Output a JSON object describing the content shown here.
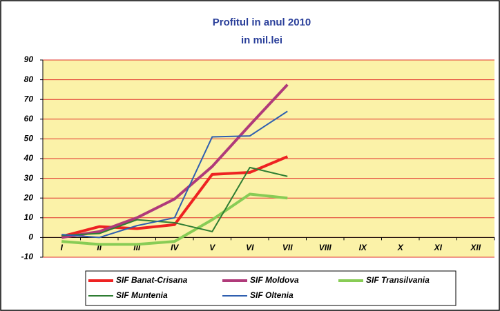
{
  "chart_data": {
    "type": "line",
    "title": "Profitul in anul 2010",
    "subtitle": "in mil.lei",
    "categories": [
      "I",
      "II",
      "III",
      "IV",
      "V",
      "VI",
      "VII",
      "VIII",
      "IX",
      "X",
      "XI",
      "XII"
    ],
    "series": [
      {
        "name": "SIF Banat-Crisana",
        "color": "#ee2222",
        "line_width": 4,
        "values": [
          0.5,
          5.5,
          4.5,
          6.5,
          32,
          33,
          41,
          null,
          null,
          null,
          null,
          null
        ]
      },
      {
        "name": "SIF Moldova",
        "color": "#b03a7a",
        "line_width": 4,
        "values": [
          0,
          3,
          10,
          19.5,
          36,
          57,
          77.5,
          null,
          null,
          null,
          null,
          null
        ]
      },
      {
        "name": "SIF Transilvania",
        "color": "#88cc55",
        "line_width": 4,
        "values": [
          -2,
          -3.5,
          -3.5,
          -2,
          9,
          22,
          20,
          null,
          null,
          null,
          null,
          null
        ]
      },
      {
        "name": "SIF Muntenia",
        "color": "#2e7d32",
        "line_width": 2,
        "values": [
          1,
          2,
          9,
          7.5,
          3,
          35.5,
          31,
          null,
          null,
          null,
          null,
          null
        ]
      },
      {
        "name": "SIF Oltenia",
        "color": "#2f5fb0",
        "line_width": 2,
        "values": [
          1.5,
          0,
          6,
          10,
          51,
          51.5,
          64,
          null,
          null,
          null,
          null,
          null
        ]
      }
    ],
    "ylim": [
      -10,
      90
    ],
    "yticks": [
      -10,
      0,
      10,
      20,
      30,
      40,
      50,
      60,
      70,
      80,
      90
    ],
    "grid": true,
    "legend": "bottom"
  }
}
